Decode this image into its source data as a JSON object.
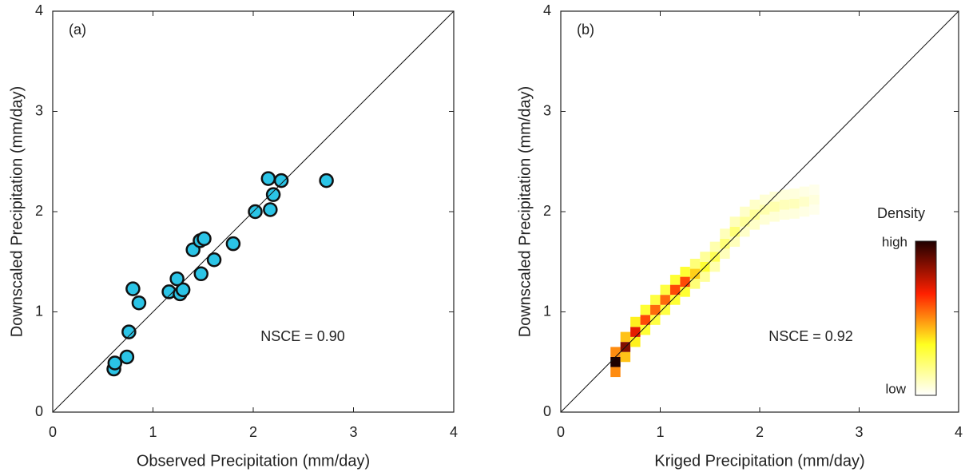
{
  "chart_data": [
    {
      "type": "scatter",
      "panel_label": "(a)",
      "annotation": "NSCE = 0.90",
      "x_label": "Observed Precipitation (mm/day)",
      "y_label": "Downscaled Precipitation (mm/day)",
      "xlim": [
        0,
        4
      ],
      "ylim": [
        0,
        4
      ],
      "xticks": [
        0,
        1,
        2,
        3,
        4
      ],
      "yticks": [
        0,
        1,
        2,
        3,
        4
      ],
      "color": "#2bc4e6",
      "x": [
        0.61,
        0.62,
        0.74,
        0.76,
        0.8,
        0.86,
        1.16,
        1.27,
        1.3,
        1.24,
        1.48,
        1.4,
        1.47,
        1.51,
        1.61,
        1.8,
        2.02,
        2.17,
        2.2,
        2.15,
        2.28,
        2.73
      ],
      "values": [
        0.43,
        0.49,
        0.55,
        0.8,
        1.23,
        1.09,
        1.2,
        1.18,
        1.22,
        1.33,
        1.38,
        1.62,
        1.71,
        1.73,
        1.52,
        1.68,
        2.0,
        2.02,
        2.17,
        2.33,
        2.31,
        2.31
      ]
    },
    {
      "type": "density",
      "panel_label": "(b)",
      "annotation": "NSCE = 0.92",
      "x_label": "Kriged Precipitation (mm/day)",
      "y_label": "Downscaled Precipitation (mm/day)",
      "xlim": [
        0,
        4
      ],
      "ylim": [
        0,
        4
      ],
      "xticks": [
        0,
        1,
        2,
        3,
        4
      ],
      "yticks": [
        0,
        1,
        2,
        3,
        4
      ],
      "colorbar": {
        "title": "Density",
        "high": "high",
        "low": "low"
      },
      "x": [
        0.55,
        0.55,
        0.55,
        0.65,
        0.65,
        0.65,
        0.75,
        0.75,
        0.75,
        0.85,
        0.85,
        0.85,
        0.95,
        0.95,
        0.95,
        1.05,
        1.05,
        1.05,
        1.15,
        1.15,
        1.15,
        1.25,
        1.25,
        1.25,
        1.35,
        1.35,
        1.35,
        1.45,
        1.45,
        1.45,
        1.55,
        1.55,
        1.55,
        1.65,
        1.65,
        1.65,
        1.75,
        1.75,
        1.75,
        1.85,
        1.85,
        1.85,
        1.95,
        1.95,
        1.95,
        2.05,
        2.05,
        2.05,
        2.15,
        2.15,
        2.15,
        2.25,
        2.25,
        2.25,
        2.35,
        2.35,
        2.35,
        2.45,
        2.45,
        2.45,
        2.55,
        2.55,
        2.55
      ],
      "y": [
        0.4,
        0.5,
        0.6,
        0.55,
        0.65,
        0.75,
        0.7,
        0.8,
        0.9,
        0.82,
        0.92,
        1.02,
        0.92,
        1.02,
        1.12,
        1.02,
        1.12,
        1.22,
        1.12,
        1.22,
        1.32,
        1.2,
        1.3,
        1.4,
        1.28,
        1.38,
        1.48,
        1.35,
        1.45,
        1.55,
        1.45,
        1.55,
        1.65,
        1.58,
        1.68,
        1.78,
        1.7,
        1.8,
        1.9,
        1.8,
        1.9,
        2.0,
        1.87,
        1.97,
        2.07,
        1.92,
        2.02,
        2.12,
        1.95,
        2.05,
        2.15,
        1.97,
        2.07,
        2.17,
        1.98,
        2.08,
        2.18,
        2.0,
        2.1,
        2.2,
        2.02,
        2.12,
        2.22
      ],
      "values": [
        0.5,
        1.0,
        0.5,
        0.42,
        0.85,
        0.42,
        0.35,
        0.7,
        0.35,
        0.3,
        0.6,
        0.3,
        0.28,
        0.55,
        0.28,
        0.28,
        0.55,
        0.28,
        0.3,
        0.6,
        0.3,
        0.3,
        0.6,
        0.3,
        0.2,
        0.4,
        0.2,
        0.15,
        0.3,
        0.15,
        0.12,
        0.25,
        0.12,
        0.1,
        0.2,
        0.1,
        0.1,
        0.2,
        0.1,
        0.08,
        0.15,
        0.08,
        0.08,
        0.15,
        0.08,
        0.06,
        0.12,
        0.06,
        0.06,
        0.12,
        0.06,
        0.05,
        0.1,
        0.05,
        0.05,
        0.1,
        0.05,
        0.04,
        0.08,
        0.04,
        0.03,
        0.05,
        0.03
      ]
    }
  ]
}
